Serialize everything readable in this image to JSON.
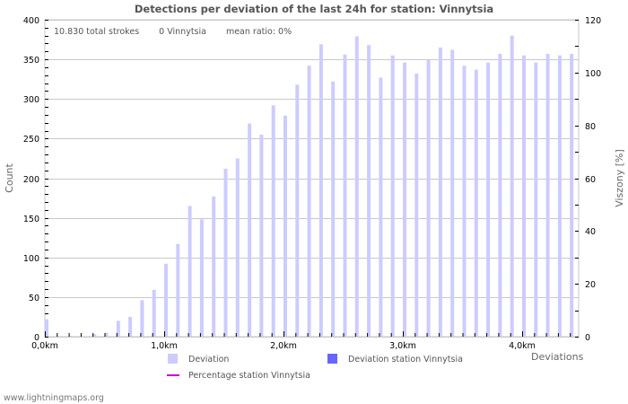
{
  "title": "Detections per deviation of the last 24h for station: Vinnytsia",
  "info": {
    "total": "10.830 total strokes",
    "station": "0 Vinnytsia",
    "ratio": "mean ratio: 0%"
  },
  "legend": {
    "deviation": "Deviation",
    "deviation_station": "Deviation station Vinnytsia",
    "percentage_station": "Percentage station Vinnytsia",
    "xaxis_label": "Deviations"
  },
  "footer": "www.lightningmaps.org",
  "colors": {
    "deviation": "#ccccff",
    "deviation_station": "#6666ff",
    "percentage": "#cc00cc",
    "grid": "#c8c8c8"
  },
  "chart_data": {
    "type": "bar",
    "title": "Detections per deviation of the last 24h for station: Vinnytsia",
    "xlabel": "Deviations",
    "ylabel": "Count",
    "y2label": "Viszony [%]",
    "ylim": [
      0,
      400
    ],
    "y2lim": [
      0,
      120
    ],
    "yticks": [
      0,
      50,
      100,
      150,
      200,
      250,
      300,
      350,
      400
    ],
    "y2ticks": [
      0,
      20,
      40,
      60,
      80,
      100,
      120
    ],
    "xtick_labels": [
      "0,0km",
      "1,0km",
      "2,0km",
      "3,0km",
      "4,0km"
    ],
    "bin_width_km": 0.1,
    "grid": true,
    "legend_position": "bottom",
    "series": [
      {
        "name": "Deviation",
        "values": [
          22,
          0,
          1,
          0,
          3,
          5,
          20,
          25,
          46,
          59,
          92,
          117,
          165,
          148,
          177,
          212,
          225,
          269,
          255,
          292,
          279,
          318,
          342,
          369,
          322,
          356,
          379,
          368,
          327,
          355,
          346,
          332,
          349,
          365,
          362,
          342,
          337,
          346,
          357,
          380,
          355,
          346,
          357,
          355,
          357
        ]
      },
      {
        "name": "Deviation station Vinnytsia",
        "values": [
          0,
          0,
          0,
          0,
          0,
          0,
          0,
          0,
          0,
          0,
          0,
          0,
          0,
          0,
          0,
          0,
          0,
          0,
          0,
          0,
          0,
          0,
          0,
          0,
          0,
          0,
          0,
          0,
          0,
          0,
          0,
          0,
          0,
          0,
          0,
          0,
          0,
          0,
          0,
          0,
          0,
          0,
          0,
          0,
          0
        ]
      },
      {
        "name": "Percentage station Vinnytsia",
        "values": []
      }
    ]
  }
}
